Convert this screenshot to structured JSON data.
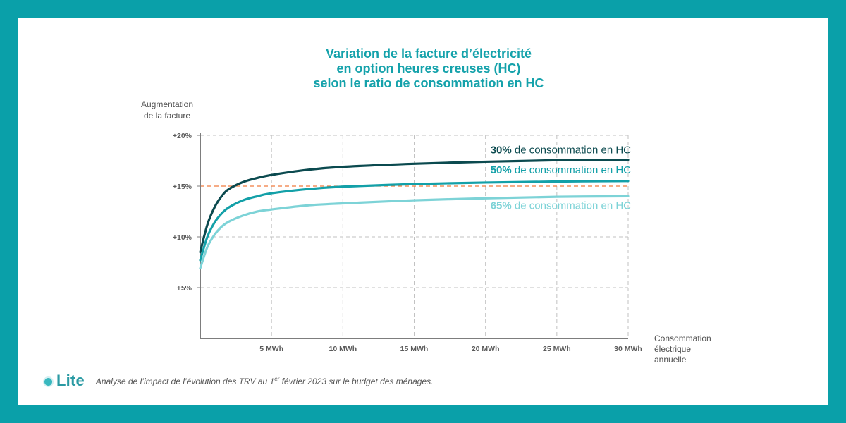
{
  "colors": {
    "frame": "#0aa0a9",
    "background": "#ffffff",
    "title": "#15a2ab",
    "threshold": "#f07b3f",
    "grid": "#c2c2c2",
    "axis": "#7d7d7d",
    "text": "#4f4f4f"
  },
  "chart_data": {
    "type": "line",
    "title_lines": [
      "Variation de la facture d’électricité",
      "en option heures creuses (HC)",
      "selon le ratio de consommation en HC"
    ],
    "ylabel_lines": [
      "Augmentation",
      "de la facture"
    ],
    "xlabel_lines": [
      "Consommation",
      "électrique",
      "annuelle"
    ],
    "xlim": [
      0,
      30
    ],
    "ylim": [
      0,
      20
    ],
    "x_ticks": [
      {
        "value": 5,
        "label": "5 MWh"
      },
      {
        "value": 10,
        "label": "10 MWh"
      },
      {
        "value": 15,
        "label": "15 MWh"
      },
      {
        "value": 20,
        "label": "20 MWh"
      },
      {
        "value": 25,
        "label": "25 MWh"
      },
      {
        "value": 30,
        "label": "30 MWh"
      }
    ],
    "y_ticks": [
      {
        "value": 5,
        "label": "+5%"
      },
      {
        "value": 10,
        "label": "+10%"
      },
      {
        "value": 15,
        "label": "+15%"
      },
      {
        "value": 20,
        "label": "+20%"
      }
    ],
    "x_gridlines": [
      5,
      10,
      15,
      20,
      25,
      30
    ],
    "y_gridlines": [
      5,
      10,
      20
    ],
    "threshold": {
      "value": 15,
      "label": "+15%",
      "color": "#f07b3f"
    },
    "series": [
      {
        "name": "30% de consommation en HC",
        "pct": "30%",
        "rest": " de consommation en HC",
        "color": "#0b4a4f",
        "x": [
          0,
          0.5,
          1,
          1.5,
          2,
          3,
          4,
          5,
          7.5,
          10,
          15,
          20,
          25,
          30
        ],
        "y": [
          8.5,
          11.2,
          12.9,
          14.0,
          14.7,
          15.4,
          15.8,
          16.1,
          16.6,
          16.9,
          17.2,
          17.4,
          17.55,
          17.6
        ]
      },
      {
        "name": "50% de consommation en HC",
        "pct": "50%",
        "rest": " de consommation en HC",
        "color": "#13a0a8",
        "x": [
          0,
          0.5,
          1,
          1.5,
          2,
          3,
          4,
          5,
          7.5,
          10,
          15,
          20,
          25,
          30
        ],
        "y": [
          7.7,
          10.0,
          11.4,
          12.3,
          12.9,
          13.6,
          14.0,
          14.3,
          14.7,
          14.95,
          15.2,
          15.35,
          15.45,
          15.5
        ]
      },
      {
        "name": "65% de consommation en HC",
        "pct": "65%",
        "rest": " de consommation en HC",
        "color": "#7dd3d7",
        "x": [
          0,
          0.5,
          1,
          1.5,
          2,
          3,
          4,
          5,
          7.5,
          10,
          15,
          20,
          25,
          30
        ],
        "y": [
          6.9,
          9.0,
          10.2,
          11.0,
          11.5,
          12.1,
          12.5,
          12.7,
          13.1,
          13.3,
          13.6,
          13.8,
          13.95,
          14.0
        ]
      }
    ]
  },
  "footer": {
    "brand": "Lite",
    "note_prefix": "Analyse de l’impact de l’évolution des TRV au 1",
    "note_sup": "er",
    "note_suffix": " février 2023 sur le budget des ménages."
  }
}
